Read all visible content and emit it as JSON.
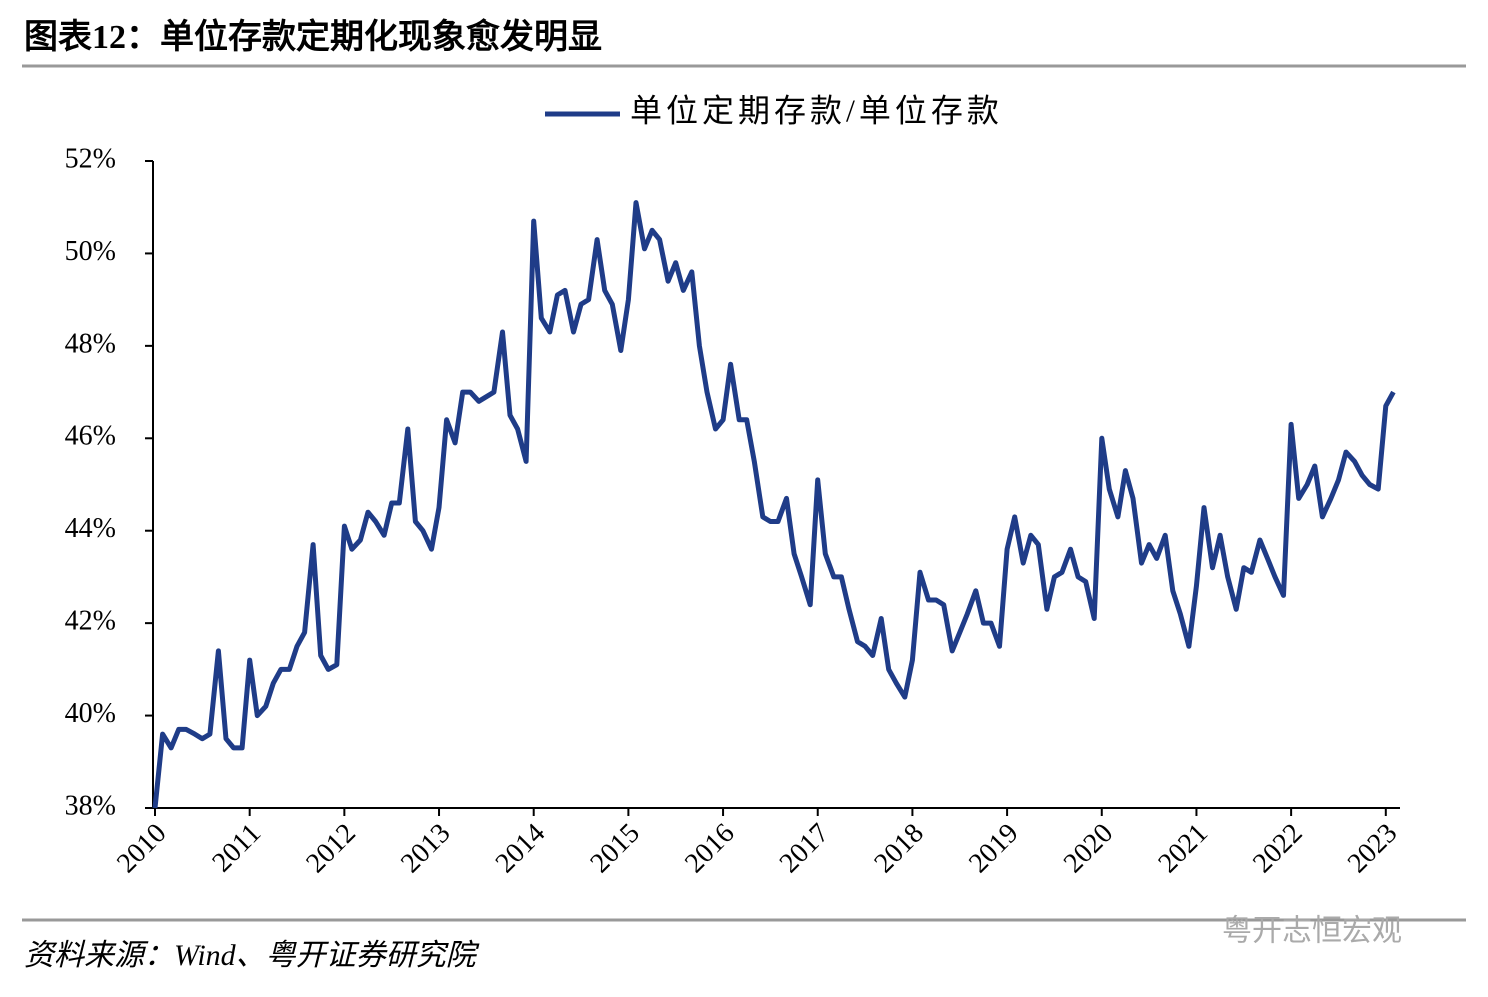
{
  "chart_data": {
    "type": "line",
    "title": "图表12：单位存款定期化现象愈发明显",
    "source": "资料来源：Wind、粤开证券研究院",
    "watermark": "粤开志恒宏观",
    "legend": "top",
    "x": [
      2010,
      2010.08,
      2010.17,
      2010.25,
      2010.33,
      2010.42,
      2010.5,
      2010.58,
      2010.67,
      2010.75,
      2010.83,
      2010.92,
      2011,
      2011.08,
      2011.17,
      2011.25,
      2011.33,
      2011.42,
      2011.5,
      2011.58,
      2011.67,
      2011.75,
      2011.83,
      2011.92,
      2012,
      2012.08,
      2012.17,
      2012.25,
      2012.33,
      2012.42,
      2012.5,
      2012.58,
      2012.67,
      2012.75,
      2012.83,
      2012.92,
      2013,
      2013.08,
      2013.17,
      2013.25,
      2013.33,
      2013.42,
      2013.5,
      2013.58,
      2013.67,
      2013.75,
      2013.83,
      2013.92,
      2014,
      2014.08,
      2014.17,
      2014.25,
      2014.33,
      2014.42,
      2014.5,
      2014.58,
      2014.67,
      2014.75,
      2014.83,
      2014.92,
      2015,
      2015.08,
      2015.17,
      2015.25,
      2015.33,
      2015.42,
      2015.5,
      2015.58,
      2015.67,
      2015.75,
      2015.83,
      2015.92,
      2016,
      2016.08,
      2016.17,
      2016.25,
      2016.33,
      2016.42,
      2016.5,
      2016.58,
      2016.67,
      2016.75,
      2016.83,
      2016.92,
      2017,
      2017.08,
      2017.17,
      2017.25,
      2017.33,
      2017.42,
      2017.5,
      2017.58,
      2017.67,
      2017.75,
      2017.83,
      2017.92,
      2018,
      2018.08,
      2018.17,
      2018.25,
      2018.33,
      2018.42,
      2018.5,
      2018.58,
      2018.67,
      2018.75,
      2018.83,
      2018.92,
      2019,
      2019.08,
      2019.17,
      2019.25,
      2019.33,
      2019.42,
      2019.5,
      2019.58,
      2019.67,
      2019.75,
      2019.83,
      2019.92,
      2020,
      2020.08,
      2020.17,
      2020.25,
      2020.33,
      2020.42,
      2020.5,
      2020.58,
      2020.67,
      2020.75,
      2020.83,
      2020.92,
      2021,
      2021.08,
      2021.17,
      2021.25,
      2021.33,
      2021.42,
      2021.5,
      2021.58,
      2021.67,
      2021.75,
      2021.83,
      2021.92,
      2022,
      2022.08,
      2022.17,
      2022.25,
      2022.33,
      2022.42,
      2022.5,
      2022.58,
      2022.67,
      2022.75,
      2022.83,
      2022.92,
      2023,
      2023.08
    ],
    "series": [
      {
        "name": "单位定期存款/单位存款",
        "color": "#1f3c88",
        "values": [
          38.0,
          39.6,
          39.3,
          39.7,
          39.7,
          39.6,
          39.5,
          39.6,
          41.4,
          39.5,
          39.3,
          39.3,
          41.2,
          40.0,
          40.2,
          40.7,
          41.0,
          41.0,
          41.5,
          41.8,
          43.7,
          41.3,
          41.0,
          41.1,
          44.1,
          43.6,
          43.8,
          44.4,
          44.2,
          43.9,
          44.6,
          44.6,
          46.2,
          44.2,
          44.0,
          43.6,
          44.5,
          46.4,
          45.9,
          47.0,
          47.0,
          46.8,
          46.9,
          47.0,
          48.3,
          46.5,
          46.2,
          45.5,
          50.7,
          48.6,
          48.3,
          49.1,
          49.2,
          48.3,
          48.9,
          49.0,
          50.3,
          49.2,
          48.9,
          47.9,
          49.0,
          51.1,
          50.1,
          50.5,
          50.3,
          49.4,
          49.8,
          49.2,
          49.6,
          48.0,
          47.0,
          46.2,
          46.4,
          47.6,
          46.4,
          46.4,
          45.5,
          44.3,
          44.2,
          44.2,
          44.7,
          43.5,
          43.0,
          42.4,
          45.1,
          43.5,
          43.0,
          43.0,
          42.3,
          41.6,
          41.5,
          41.3,
          42.1,
          41.0,
          40.7,
          40.4,
          41.2,
          43.1,
          42.5,
          42.5,
          42.4,
          41.4,
          41.8,
          42.2,
          42.7,
          42.0,
          42.0,
          41.5,
          43.6,
          44.3,
          43.3,
          43.9,
          43.7,
          42.3,
          43.0,
          43.1,
          43.6,
          43.0,
          42.9,
          42.1,
          46.0,
          44.9,
          44.3,
          45.3,
          44.7,
          43.3,
          43.7,
          43.4,
          43.9,
          42.7,
          42.2,
          41.5,
          42.8,
          44.5,
          43.2,
          43.9,
          43.0,
          42.3,
          43.2,
          43.1,
          43.8,
          43.4,
          43.0,
          42.6,
          46.3,
          44.7,
          45.0,
          45.4,
          44.3,
          44.7,
          45.1,
          45.7,
          45.5,
          45.2,
          45.0,
          44.9,
          46.7,
          47.0
        ]
      }
    ],
    "xlim": [
      2010,
      2023.15
    ],
    "xticks": [
      2010,
      2011,
      2012,
      2013,
      2014,
      2015,
      2016,
      2017,
      2018,
      2019,
      2020,
      2021,
      2022,
      2023
    ],
    "ylim": [
      38,
      52
    ],
    "yticks": [
      {
        "value": 38,
        "label": "38%"
      },
      {
        "value": 40,
        "label": "40%"
      },
      {
        "value": 42,
        "label": "42%"
      },
      {
        "value": 44,
        "label": "44%"
      },
      {
        "value": 46,
        "label": "46%"
      },
      {
        "value": 48,
        "label": "48%"
      },
      {
        "value": 50,
        "label": "50%"
      },
      {
        "value": 52,
        "label": "52%"
      }
    ],
    "grid": false
  }
}
